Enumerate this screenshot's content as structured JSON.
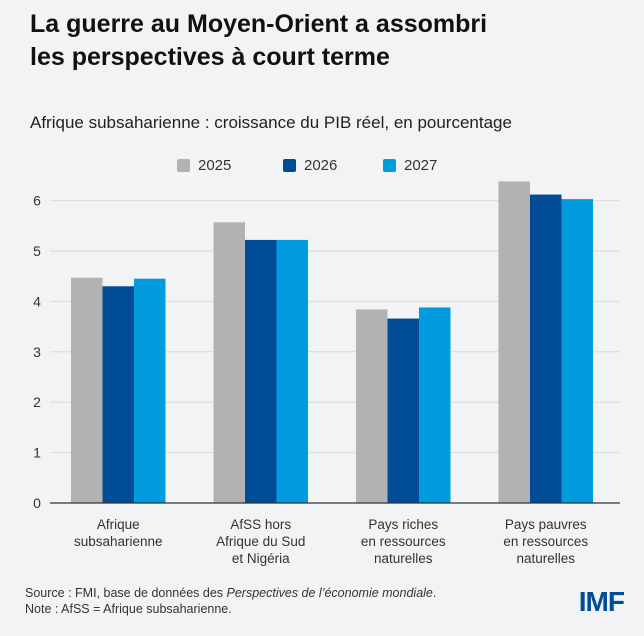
{
  "title_lines": [
    "La guerre au Moyen-Orient a assombri",
    "les perspectives à court terme"
  ],
  "chart_data": {
    "type": "bar",
    "title": "La guerre au Moyen-Orient a assombri les perspectives à court terme",
    "subtitle": "Afrique subsaharienne : croissance du PIB réel, en pourcentage",
    "categories": [
      [
        "Afrique",
        "subsaharienne"
      ],
      [
        "AfSS hors",
        "Afrique du Sud",
        "et Nigéria"
      ],
      [
        "Pays riches",
        "en ressources",
        "naturelles"
      ],
      [
        "Pays pauvres",
        "en ressources",
        "naturelles"
      ]
    ],
    "series": [
      {
        "name": "2025",
        "color": "#b1b2b1",
        "values": [
          4.47,
          5.57,
          3.84,
          6.38
        ]
      },
      {
        "name": "2026",
        "color": "#004c97",
        "values": [
          4.3,
          5.22,
          3.66,
          6.12
        ]
      },
      {
        "name": "2027",
        "color": "#009cde",
        "values": [
          4.45,
          5.22,
          3.88,
          6.03
        ]
      }
    ],
    "ylim": [
      0,
      6
    ],
    "yticks": [
      "0",
      "1",
      "2",
      "3",
      "4",
      "5",
      "6"
    ],
    "grid": true,
    "legend": "top"
  },
  "footer": {
    "source_prefix": "Source : FMI, base de données des ",
    "source_italic": "Perspectives de l’économie mondiale",
    "source_suffix": ".",
    "note": "Note : AfSS = Afrique subsaharienne."
  },
  "logo": "IMF"
}
